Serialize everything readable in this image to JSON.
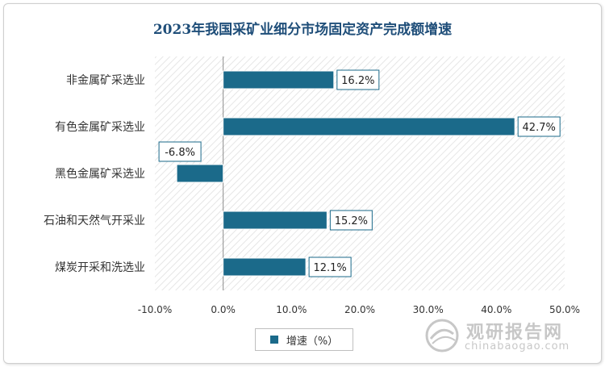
{
  "chart_data": {
    "type": "bar",
    "orientation": "horizontal",
    "title": "2023年我国采矿业细分市场固定资产完成额增速",
    "categories": [
      "非金属矿采选业",
      "有色金属矿采选业",
      "黑色金属矿采选业",
      "石油和天然气开采业",
      "煤炭开采和洗选业"
    ],
    "series": [
      {
        "name": "增速（%）",
        "values": [
          16.2,
          42.7,
          -6.8,
          15.2,
          12.1
        ],
        "labels": [
          "16.2%",
          "42.7%",
          "-6.8%",
          "15.2%",
          "12.1%"
        ]
      }
    ],
    "xlim": [
      -10,
      50
    ],
    "xticks": [
      -10,
      0,
      10,
      20,
      30,
      40,
      50
    ],
    "xtick_labels": [
      "-10.0%",
      "0.0%",
      "10.0%",
      "20.0%",
      "30.0%",
      "40.0%",
      "50.0%"
    ],
    "bar_color": "#1b6a8a",
    "legend_position": "bottom",
    "grid": false
  },
  "watermark": {
    "name_cn": "观研报告网",
    "url": "chinabaogao.com"
  }
}
